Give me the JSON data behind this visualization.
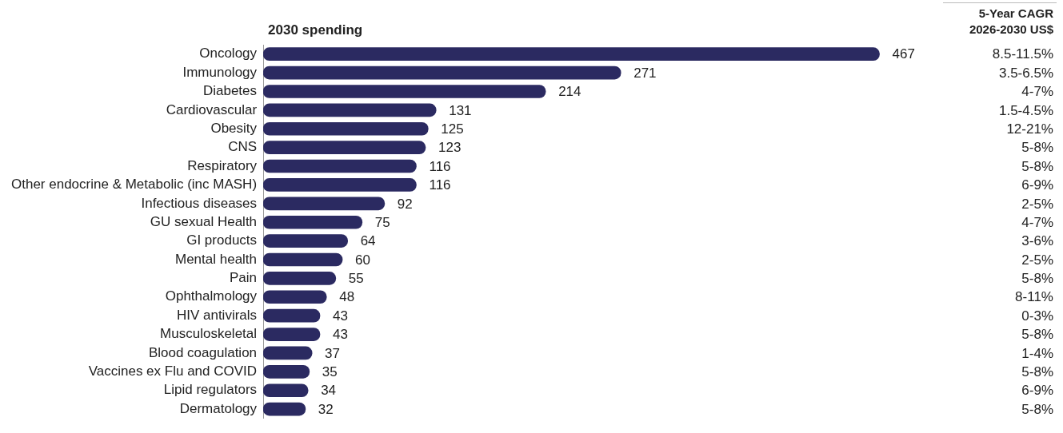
{
  "chart_data": {
    "type": "bar",
    "orientation": "horizontal",
    "title": "2030 spending",
    "categories": [
      "Oncology",
      "Immunology",
      "Diabetes",
      "Cardiovascular",
      "Obesity",
      "CNS",
      "Respiratory",
      "Other endocrine & Metabolic (inc MASH)",
      "Infectious diseases",
      "GU sexual Health",
      "GI products",
      "Mental health",
      "Pain",
      "Ophthalmology",
      "HIV antivirals",
      "Musculoskeletal",
      "Blood coagulation",
      "Vaccines ex Flu and COVID",
      "Lipid regulators",
      "Dermatology"
    ],
    "values": [
      467,
      271,
      214,
      131,
      125,
      123,
      116,
      116,
      92,
      75,
      64,
      60,
      55,
      48,
      43,
      43,
      37,
      35,
      34,
      32
    ],
    "color": "#2b2a61",
    "data_labels": true,
    "grid": false,
    "legend": false,
    "tick_labels": "y",
    "annotations": [
      "5-Year CAGR\n2026-2030 US$",
      "8.5-11.5%",
      "3.5-6.5%",
      "4-7%",
      "1.5-4.5%",
      "12-21%",
      "5-8%",
      "5-8%",
      "6-9%",
      "2-5%",
      "4-7%",
      "3-6%",
      "2-5%",
      "5-8%",
      "8-11%",
      "0-3%",
      "5-8%",
      "1-4%",
      "5-8%",
      "6-9%",
      "5-8%"
    ]
  }
}
